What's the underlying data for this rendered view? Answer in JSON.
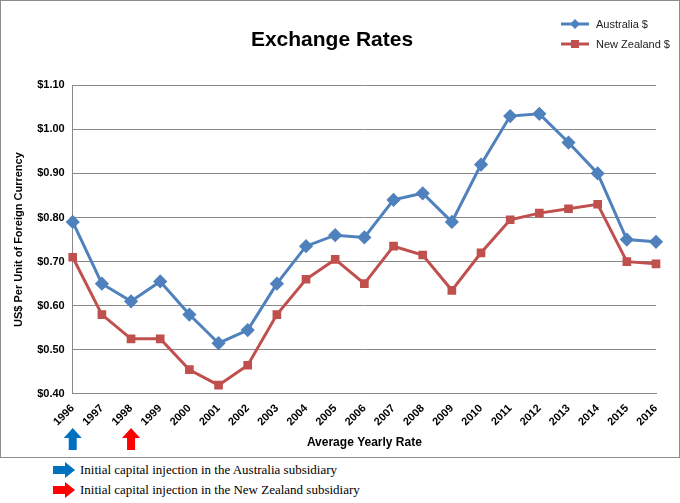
{
  "chart_data": {
    "type": "line",
    "title": "Exchange Rates",
    "x_label": "Average Yearly Rate",
    "y_label": "US$ Per Unit of Foreign Currency",
    "categories": [
      "1996",
      "1997",
      "1998",
      "1999",
      "2000",
      "2001",
      "2002",
      "2003",
      "2004",
      "2005",
      "2006",
      "2007",
      "2008",
      "2009",
      "2010",
      "2011",
      "2012",
      "2013",
      "2014",
      "2015",
      "2016"
    ],
    "series": [
      {
        "name": "Australia $",
        "color": "#4F81BD",
        "marker": "diamond",
        "values": [
          0.79,
          0.65,
          0.61,
          0.655,
          0.58,
          0.515,
          0.545,
          0.65,
          0.735,
          0.76,
          0.755,
          0.84,
          0.855,
          0.79,
          0.92,
          1.03,
          1.035,
          0.97,
          0.9,
          0.75,
          0.745
        ]
      },
      {
        "name": "New Zealand $",
        "color": "#C0504D",
        "marker": "square",
        "values": [
          0.71,
          0.58,
          0.525,
          0.525,
          0.455,
          0.42,
          0.465,
          0.58,
          0.66,
          0.705,
          0.65,
          0.735,
          0.715,
          0.635,
          0.72,
          0.795,
          0.81,
          0.82,
          0.83,
          0.7,
          0.695
        ]
      }
    ],
    "ylim": [
      0.4,
      1.1
    ],
    "yticks": [
      {
        "value": 0.4,
        "label": "$0.40"
      },
      {
        "value": 0.5,
        "label": "$0.50"
      },
      {
        "value": 0.6,
        "label": "$0.60"
      },
      {
        "value": 0.7,
        "label": "$0.70"
      },
      {
        "value": 0.8,
        "label": "$0.80"
      },
      {
        "value": 0.9,
        "label": "$0.90"
      },
      {
        "value": 1.0,
        "label": "$1.00"
      },
      {
        "value": 1.1,
        "label": "$1.10"
      }
    ],
    "grid": true,
    "legend": "top right",
    "annotations": [
      {
        "text": "Initial capital injection in the Australia subsidiary",
        "category": "1996",
        "color": "#0070C0"
      },
      {
        "text": "Initial capital injection in the New Zealand subsidiary",
        "category": "1998",
        "color": "#FF0000"
      }
    ]
  }
}
